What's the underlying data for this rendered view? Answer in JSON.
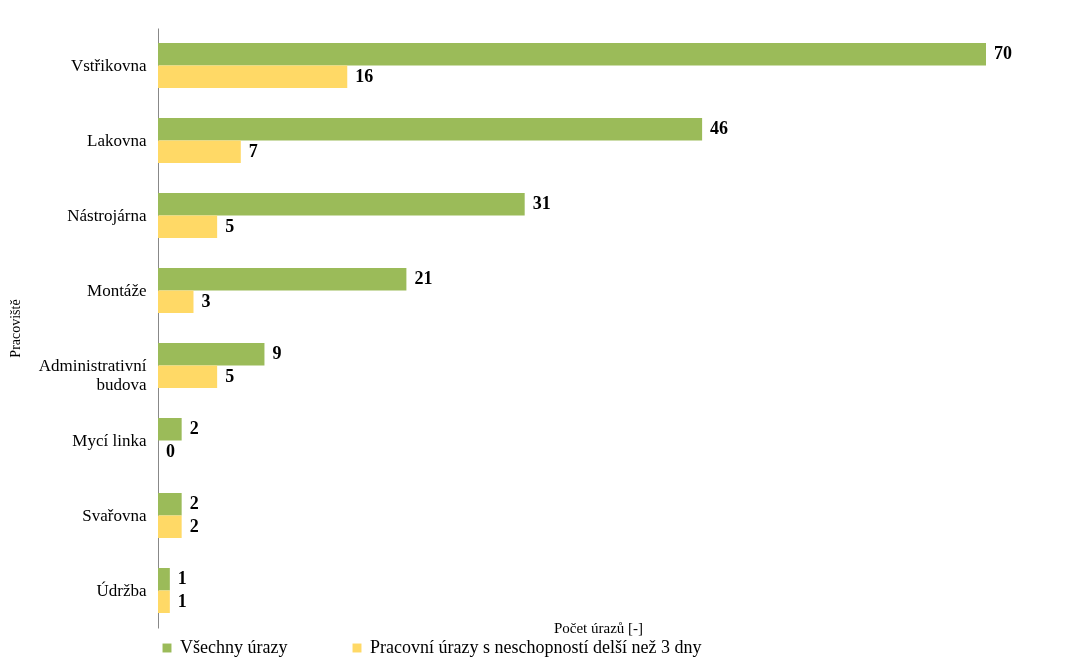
{
  "chart_data": {
    "type": "bar",
    "orientation": "horizontal",
    "xlabel": "Počet úrazů [-]",
    "ylabel": "Pracoviště",
    "categories": [
      "Vstřikovna",
      "Lakovna",
      "Nástrojárna",
      "Montáže",
      "Administrativní budova",
      "Mycí linka",
      "Svařovna",
      "Údržba"
    ],
    "series": [
      {
        "name": "Všechny úrazy",
        "color": "#9bbb59",
        "values": [
          70,
          46,
          31,
          21,
          9,
          2,
          2,
          1
        ]
      },
      {
        "name": "Pracovní úrazy s neschopností delší než 3 dny",
        "color": "#ffd966",
        "values": [
          16,
          7,
          5,
          3,
          5,
          0,
          2,
          1
        ]
      }
    ],
    "data_labels": true,
    "legend": "bottom",
    "marker": "square",
    "grid": false
  }
}
